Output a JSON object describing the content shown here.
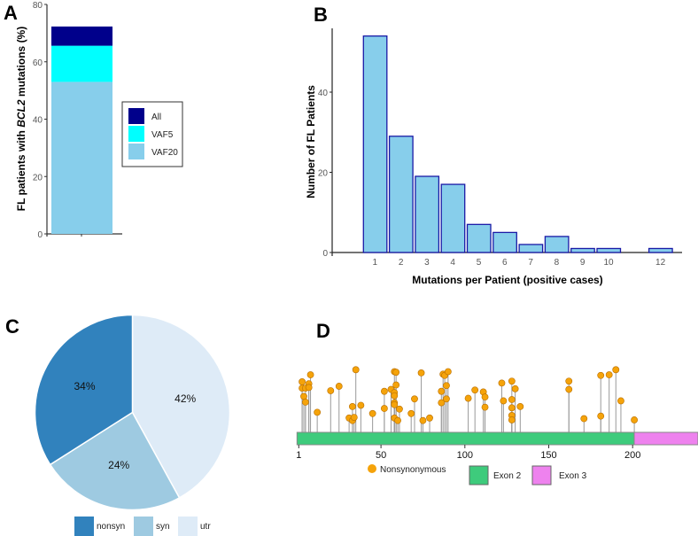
{
  "panels": {
    "a": "A",
    "b": "B",
    "c": "C",
    "d": "D"
  },
  "chart_data": [
    {
      "type": "bar",
      "stacked": true,
      "ylabel_pre": "FL patients with ",
      "ylabel_gene": "BCL2",
      "ylabel_post": " mutations (%)",
      "ylim": [
        0,
        80
      ],
      "yticks": [
        "0",
        "20",
        "40",
        "60",
        "80"
      ],
      "series": [
        {
          "name": "VAF20",
          "value": 53,
          "color": "#87ceeb"
        },
        {
          "name": "VAF5",
          "value": 65.6,
          "color": "#00ffff"
        },
        {
          "name": "All",
          "value": 72.3,
          "color": "#00008b"
        }
      ],
      "legend": [
        "All",
        "VAF5",
        "VAF20"
      ],
      "legend_position": "right"
    },
    {
      "type": "bar",
      "xlabel": "Mutations per Patient (positive cases)",
      "ylabel": "Number of FL Patients",
      "ylim": [
        0,
        56
      ],
      "yticks": [
        "0",
        "20",
        "40"
      ],
      "categories": [
        "1",
        "2",
        "3",
        "4",
        "5",
        "6",
        "7",
        "8",
        "9",
        "10",
        "12"
      ],
      "x": [
        1,
        2,
        3,
        4,
        5,
        6,
        7,
        8,
        9,
        10,
        12
      ],
      "values": [
        54,
        29,
        19,
        17,
        7,
        5,
        2,
        4,
        1,
        1,
        1
      ],
      "fill": "#87ceeb",
      "stroke": "#1a1aa6"
    },
    {
      "type": "pie",
      "slices": [
        {
          "name": "utr",
          "value": 42,
          "label": "42%",
          "color": "#deebf7"
        },
        {
          "name": "syn",
          "value": 24,
          "label": "24%",
          "color": "#9ecae1"
        },
        {
          "name": "nonsyn",
          "value": 34,
          "label": "34%",
          "color": "#3182bd"
        }
      ],
      "legend": [
        "nonsyn",
        "syn",
        "utr"
      ],
      "legend_position": "bottom"
    },
    {
      "type": "lollipop",
      "xlim": [
        1,
        240
      ],
      "xticks": [
        "1",
        "50",
        "100",
        "150",
        "200"
      ],
      "exons": [
        {
          "name": "Exon 2",
          "start": 1,
          "end": 202,
          "color": "#3ecb7c"
        },
        {
          "name": "Exon 3",
          "start": 202,
          "end": 240,
          "color": "#ee82ee"
        }
      ],
      "legend_mut": "Nonsynonymous",
      "mut_color": "#f5a30a",
      "mutations": [
        [
          3,
          0.8
        ],
        [
          3,
          0.7
        ],
        [
          4,
          0.57
        ],
        [
          5,
          0.7
        ],
        [
          5,
          0.48
        ],
        [
          7,
          0.77
        ],
        [
          7,
          0.71
        ],
        [
          8,
          0.91
        ],
        [
          12,
          0.32
        ],
        [
          20,
          0.66
        ],
        [
          25,
          0.73
        ],
        [
          31,
          0.23
        ],
        [
          33,
          0.41
        ],
        [
          33,
          0.19
        ],
        [
          34,
          0.24
        ],
        [
          35,
          0.99
        ],
        [
          38,
          0.43
        ],
        [
          45,
          0.3
        ],
        [
          52,
          0.65
        ],
        [
          52,
          0.38
        ],
        [
          56,
          0.68
        ],
        [
          58,
          0.96
        ],
        [
          58,
          0.63
        ],
        [
          58,
          0.58
        ],
        [
          58,
          0.47
        ],
        [
          58,
          0.44
        ],
        [
          58,
          0.23
        ],
        [
          59,
          0.95
        ],
        [
          59,
          0.75
        ],
        [
          60,
          0.19
        ],
        [
          61,
          0.37
        ],
        [
          68,
          0.3
        ],
        [
          70,
          0.53
        ],
        [
          74,
          0.94
        ],
        [
          75,
          0.19
        ],
        [
          79,
          0.23
        ],
        [
          86,
          0.47
        ],
        [
          86,
          0.65
        ],
        [
          87,
          0.92
        ],
        [
          88,
          0.9
        ],
        [
          89,
          0.74
        ],
        [
          89,
          0.53
        ],
        [
          90,
          0.96
        ],
        [
          102,
          0.54
        ],
        [
          106,
          0.67
        ],
        [
          111,
          0.64
        ],
        [
          112,
          0.4
        ],
        [
          112,
          0.56
        ],
        [
          122,
          0.78
        ],
        [
          123,
          0.5
        ],
        [
          128,
          0.81
        ],
        [
          128,
          0.52
        ],
        [
          128,
          0.39
        ],
        [
          128,
          0.27
        ],
        [
          128,
          0.2
        ],
        [
          130,
          0.69
        ],
        [
          133,
          0.41
        ],
        [
          162,
          0.81
        ],
        [
          162,
          0.68
        ],
        [
          171,
          0.22
        ],
        [
          181,
          0.9
        ],
        [
          181,
          0.26
        ],
        [
          186,
          0.91
        ],
        [
          190,
          0.99
        ],
        [
          193,
          0.5
        ],
        [
          201,
          0.2
        ]
      ]
    }
  ]
}
